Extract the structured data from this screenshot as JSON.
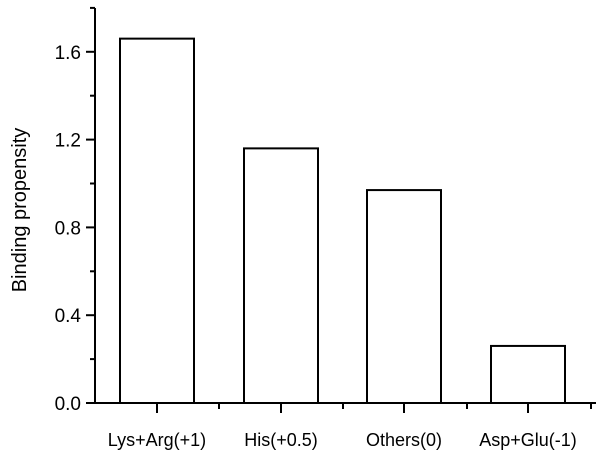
{
  "chart_data": {
    "type": "bar",
    "categories": [
      "Lys+Arg(+1)",
      "His(+0.5)",
      "Others(0)",
      "Asp+Glu(-1)"
    ],
    "values": [
      1.66,
      1.16,
      0.97,
      0.26
    ],
    "title": "",
    "xlabel": "",
    "ylabel": "Binding propensity",
    "ylim": [
      0.0,
      1.8
    ],
    "yticks": [
      "0.0",
      "0.4",
      "0.8",
      "1.2",
      "1.6"
    ],
    "grid": false,
    "legend": "none",
    "bar_fill": "#ffffff",
    "bar_stroke": "#000000"
  }
}
